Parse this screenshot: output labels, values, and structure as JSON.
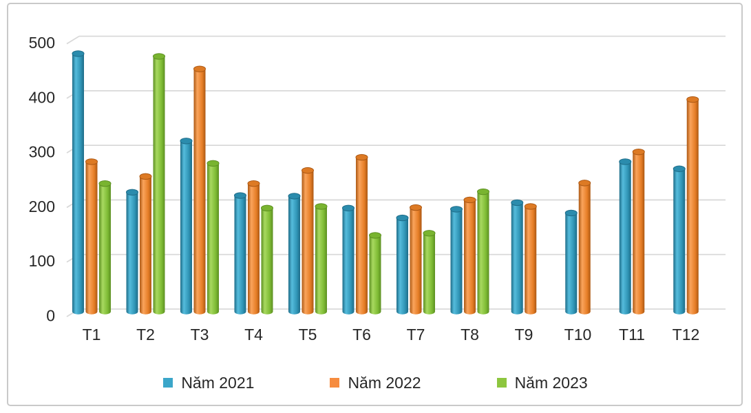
{
  "frame": {
    "background": "#FFFFFF",
    "border_color": "#C9C9C9"
  },
  "chart_data": {
    "type": "bar",
    "style": "3d-cylinder-column",
    "title": "",
    "xlabel": "",
    "ylabel": "",
    "categories": [
      "T1",
      "T2",
      "T3",
      "T4",
      "T5",
      "T6",
      "T7",
      "T8",
      "T9",
      "T10",
      "T11",
      "T12"
    ],
    "series": [
      {
        "name": "Năm 2021",
        "legend_color": "#3BA6C9",
        "cylinder": {
          "edge": "#1E6C88",
          "highlight": "#55BCDC",
          "mid": "#3095B6",
          "cap": "#2B8CAD"
        },
        "values": [
          468,
          214,
          308,
          208,
          207,
          185,
          167,
          183,
          195,
          176,
          270,
          257
        ]
      },
      {
        "name": "Năm 2022",
        "legend_color": "#F68C3F",
        "cylinder": {
          "edge": "#AC5813",
          "highlight": "#FAA45C",
          "mid": "#E67E27",
          "cap": "#DD7A24"
        },
        "values": [
          270,
          243,
          440,
          230,
          254,
          278,
          186,
          200,
          188,
          231,
          288,
          384
        ]
      },
      {
        "name": "Năm 2023",
        "legend_color": "#8DC63F",
        "cylinder": {
          "edge": "#5C8F22",
          "highlight": "#A8D960",
          "mid": "#7FBC35",
          "cap": "#79B430"
        },
        "values": [
          230,
          463,
          267,
          185,
          188,
          135,
          139,
          215,
          null,
          null,
          null,
          null
        ]
      }
    ],
    "ylim": [
      0,
      500
    ],
    "yticks": [
      0,
      100,
      200,
      300,
      400,
      500
    ],
    "grid": true,
    "gridline_color": "#D9D9D9",
    "text_color": "#262626",
    "legend_position": "bottom"
  }
}
